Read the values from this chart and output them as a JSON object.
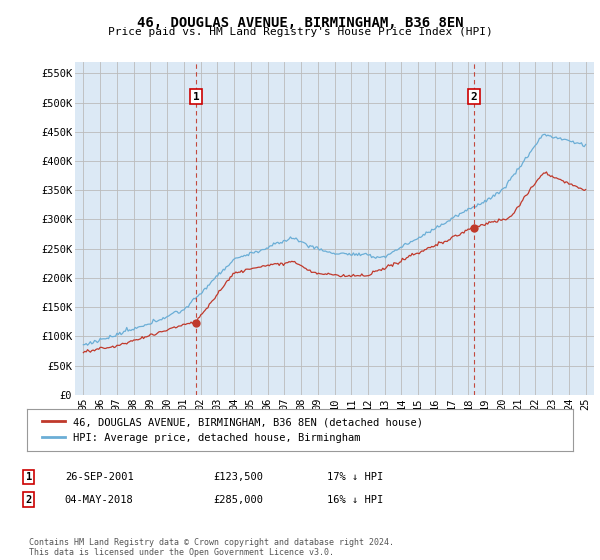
{
  "title": "46, DOUGLAS AVENUE, BIRMINGHAM, B36 8EN",
  "subtitle": "Price paid vs. HM Land Registry's House Price Index (HPI)",
  "ylabel_ticks": [
    "£0",
    "£50K",
    "£100K",
    "£150K",
    "£200K",
    "£250K",
    "£300K",
    "£350K",
    "£400K",
    "£450K",
    "£500K",
    "£550K"
  ],
  "ytick_values": [
    0,
    50000,
    100000,
    150000,
    200000,
    250000,
    300000,
    350000,
    400000,
    450000,
    500000,
    550000
  ],
  "ylim": [
    0,
    570000
  ],
  "xmin_year": 1994.5,
  "xmax_year": 2025.5,
  "xtick_years": [
    1995,
    1996,
    1997,
    1998,
    1999,
    2000,
    2001,
    2002,
    2003,
    2004,
    2005,
    2006,
    2007,
    2008,
    2009,
    2010,
    2011,
    2012,
    2013,
    2014,
    2015,
    2016,
    2017,
    2018,
    2019,
    2020,
    2021,
    2022,
    2023,
    2024,
    2025
  ],
  "sale1_date": 2001.73,
  "sale1_price": 123500,
  "sale1_label": "1",
  "sale2_date": 2018.34,
  "sale2_price": 285000,
  "sale2_label": "2",
  "hpi_color": "#6baed6",
  "property_color": "#c0392b",
  "vline_color": "#c0392b",
  "plot_bg_color": "#dce9f5",
  "legend_label_property": "46, DOUGLAS AVENUE, BIRMINGHAM, B36 8EN (detached house)",
  "legend_label_hpi": "HPI: Average price, detached house, Birmingham",
  "table_row1": [
    "1",
    "26-SEP-2001",
    "£123,500",
    "17% ↓ HPI"
  ],
  "table_row2": [
    "2",
    "04-MAY-2018",
    "£285,000",
    "16% ↓ HPI"
  ],
  "footnote": "Contains HM Land Registry data © Crown copyright and database right 2024.\nThis data is licensed under the Open Government Licence v3.0.",
  "background_color": "#ffffff",
  "grid_color": "#bbbbbb"
}
